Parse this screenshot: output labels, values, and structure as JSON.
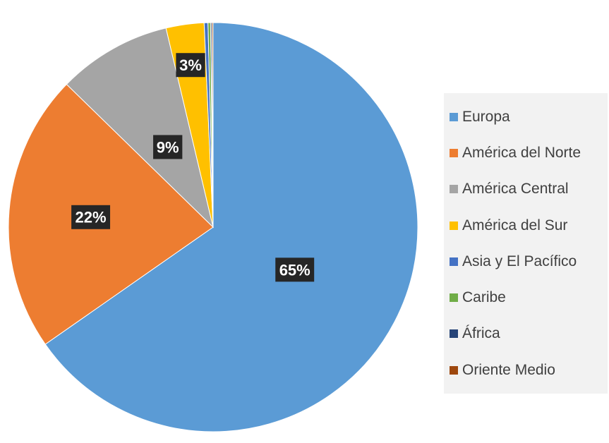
{
  "chart_data": {
    "type": "pie",
    "start_angle_deg": 0,
    "direction": "clockwise",
    "data_label_bg": "#262626",
    "data_label_color": "#ffffff",
    "series": [
      {
        "name": "Europa",
        "value": 65.3,
        "label": "65%",
        "color": "#5b9bd5"
      },
      {
        "name": "América del Norte",
        "value": 22.0,
        "label": "22%",
        "color": "#ed7d31"
      },
      {
        "name": "América Central",
        "value": 9.0,
        "label": "9%",
        "color": "#a5a5a5"
      },
      {
        "name": "América del Sur",
        "value": 3.0,
        "label": "3%",
        "color": "#ffc000"
      },
      {
        "name": "Asia y El Pacífico",
        "value": 0.3,
        "label": "",
        "color": "#4472c4"
      },
      {
        "name": "Caribe",
        "value": 0.2,
        "label": "",
        "color": "#70ad47"
      },
      {
        "name": "África",
        "value": 0.1,
        "label": "",
        "color": "#264478"
      },
      {
        "name": "Oriente Medio",
        "value": 0.1,
        "label": "",
        "color": "#9e480e"
      }
    ],
    "legend": {
      "position": "right",
      "entries": [
        "Europa",
        "América del Norte",
        "América Central",
        "América del Sur",
        "Asia y El Pacífico",
        "Caribe",
        "África",
        "Oriente Medio"
      ]
    }
  }
}
